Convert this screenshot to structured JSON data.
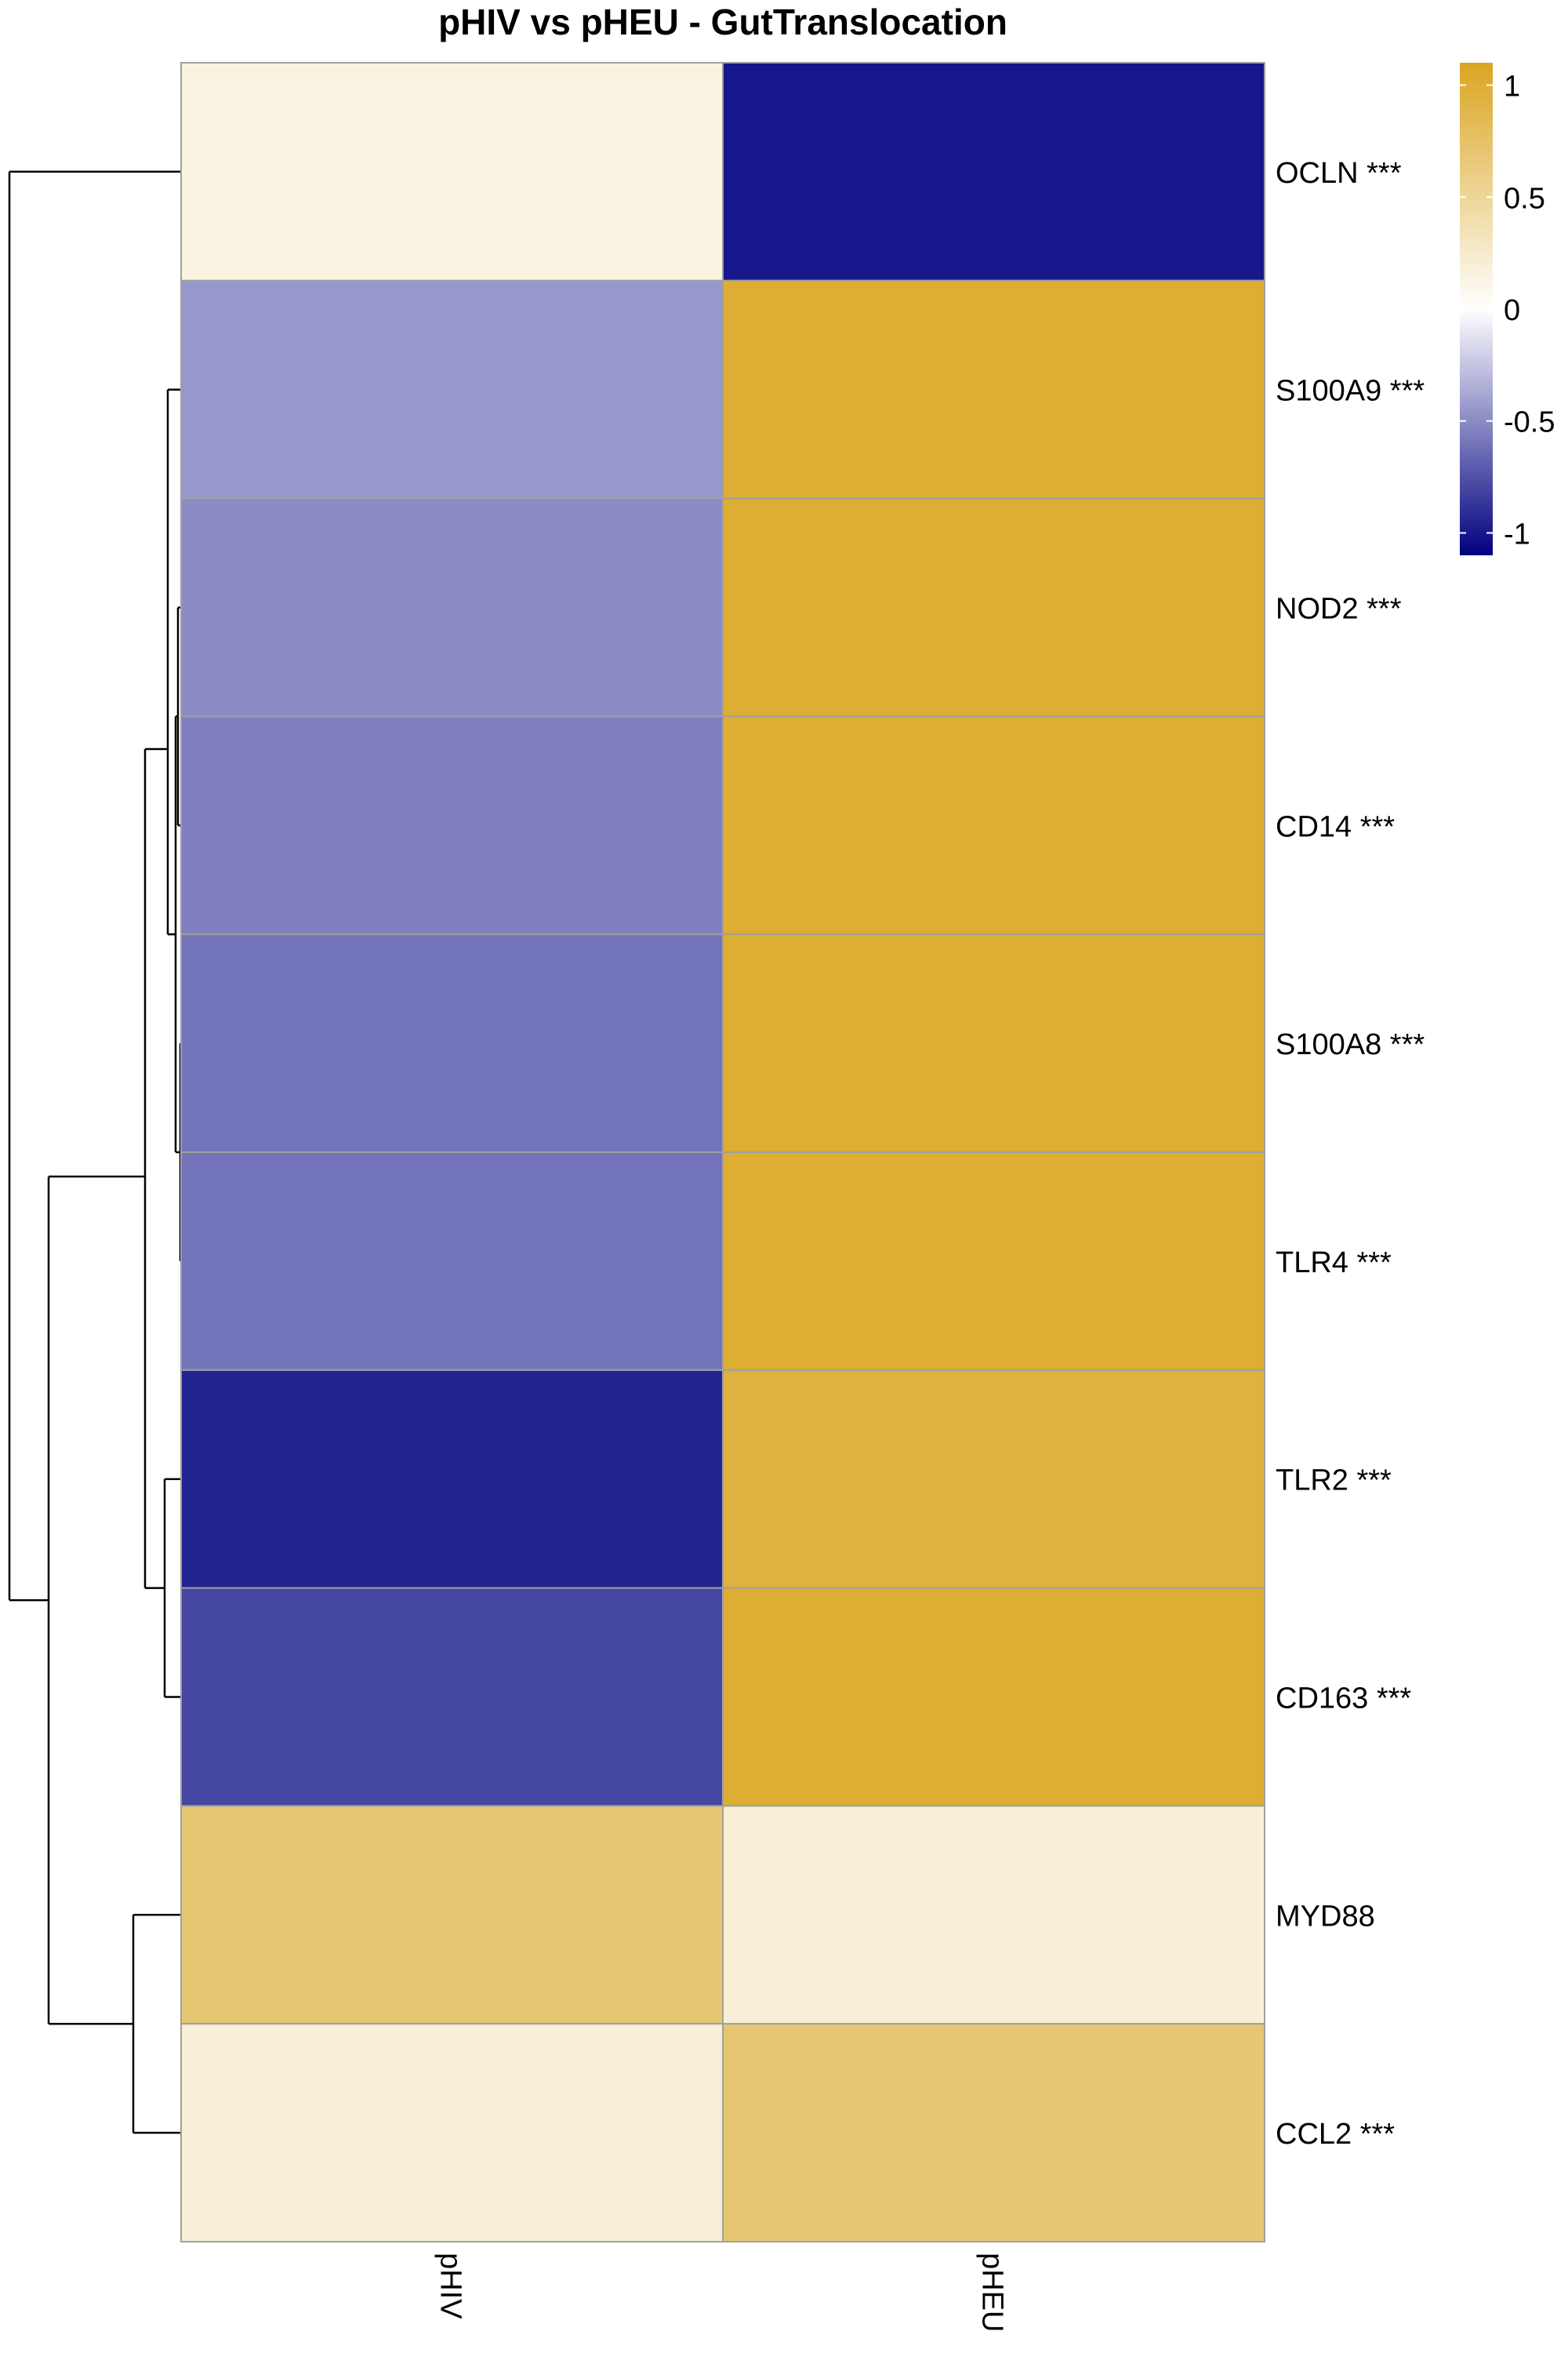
{
  "chart_data": {
    "type": "heatmap",
    "title": "pHIV vs pHEU - GutTranslocation",
    "columns": [
      "pHIV",
      "pHEU"
    ],
    "rows": [
      "OCLN ***",
      "S100A9 ***",
      "NOD2 ***",
      "CD14 ***",
      "S100A8 ***",
      "TLR4 ***",
      "TLR2 ***",
      "CD163 ***",
      "MYD88",
      "CCL2 ***"
    ],
    "values": [
      [
        0.15,
        -1.0
      ],
      [
        -0.45,
        1.0
      ],
      [
        -0.5,
        1.0
      ],
      [
        -0.55,
        1.0
      ],
      [
        -0.6,
        1.0
      ],
      [
        -0.6,
        1.0
      ],
      [
        -0.95,
        0.95
      ],
      [
        -0.8,
        1.0
      ],
      [
        0.7,
        0.2
      ],
      [
        0.2,
        0.7
      ]
    ],
    "color_scale": {
      "low": "#000080",
      "mid": "#ffffff",
      "high": "#daa520",
      "range": [
        -1.1,
        1.1
      ]
    },
    "legend": {
      "ticks": [
        1,
        0.5,
        0,
        -0.5,
        -1
      ],
      "tick_labels": [
        "1",
        "0.5",
        "0",
        "-0.5",
        "-1"
      ],
      "position": "top-right"
    },
    "dendrogram": {
      "side": "left",
      "orientation": "rows",
      "order": [
        "OCLN ***",
        "S100A9 ***",
        "NOD2 ***",
        "CD14 ***",
        "S100A8 ***",
        "TLR4 ***",
        "TLR2 ***",
        "CD163 ***",
        "MYD88",
        "CCL2 ***"
      ]
    },
    "grid": true,
    "cell_border_color": "#a0a0a0"
  }
}
